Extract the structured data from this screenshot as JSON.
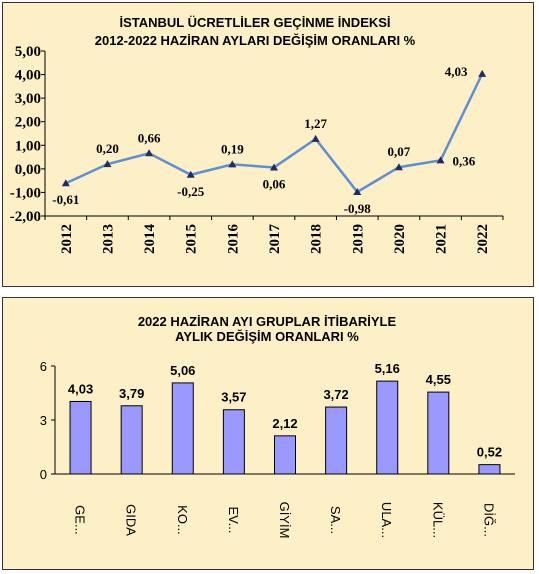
{
  "chart_data": [
    {
      "type": "line",
      "title": "İSTANBUL ÜCRETLİLER GEÇİNME İNDEKSİ",
      "subtitle": "2012-2022 HAZİRAN AYLARI DEĞİŞİM ORANLARI %",
      "categories": [
        "2012",
        "2013",
        "2014",
        "2015",
        "2016",
        "2017",
        "2018",
        "2019",
        "2020",
        "2021",
        "2022"
      ],
      "values": [
        -0.61,
        0.2,
        0.66,
        -0.25,
        0.19,
        0.06,
        1.27,
        -0.98,
        0.07,
        0.36,
        4.03
      ],
      "data_labels": [
        "-0,61",
        "0,20",
        "0,66",
        "-0,25",
        "0,19",
        "0,06",
        "1,27",
        "-0,98",
        "0,07",
        "0,36",
        "4,03"
      ],
      "ylim": [
        -2,
        5
      ],
      "yticks": [
        "5,00",
        "4,00",
        "3,00",
        "2,00",
        "1,00",
        "0,00",
        "-1,00",
        "-2,00"
      ],
      "color": "#5b8fd6",
      "marker_color": "#1f2a66",
      "grid": false
    },
    {
      "type": "bar",
      "title": "2022 HAZİRAN AYI GRUPLAR İTİBARİYLE",
      "subtitle": "AYLIK DEĞİŞİM ORANLARI %",
      "categories": [
        "GE...",
        "GIDA",
        "KO...",
        "EV...",
        "GİYİM",
        "SA...",
        "ULA...",
        "KÜL...",
        "DİĞ..."
      ],
      "values": [
        4.03,
        3.79,
        5.06,
        3.57,
        2.12,
        3.72,
        5.16,
        4.55,
        0.52
      ],
      "data_labels": [
        "4,03",
        "3,79",
        "5,06",
        "3,57",
        "2,12",
        "3,72",
        "5,16",
        "4,55",
        "0,52"
      ],
      "ylim": [
        0,
        6
      ],
      "yticks": [
        "6",
        "3",
        "0"
      ],
      "color": "#9999ff",
      "grid": false
    }
  ]
}
